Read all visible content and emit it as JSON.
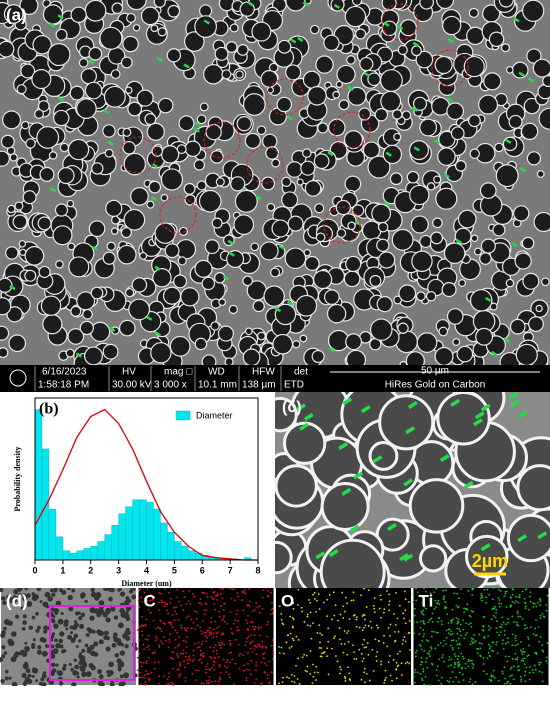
{
  "panel_a": {
    "label": "(a)",
    "info_fields": [
      {
        "top": "6/16/2023",
        "bottom": "1:58:18 PM"
      },
      {
        "top": "HV",
        "bottom": "30.00 kV"
      },
      {
        "top": "mag □",
        "bottom": "3 000 x"
      },
      {
        "top": "WD",
        "bottom": "10.1 mm"
      },
      {
        "top": "HFW",
        "bottom": "138 µm"
      },
      {
        "top": "det",
        "bottom": "ETD"
      }
    ],
    "scale_bar": "50 µm",
    "description": "HiRes Gold on Carbon"
  },
  "chart_data": {
    "type": "histogram",
    "label": "(b)",
    "xlabel": "Diameter (um)",
    "ylabel": "Probability density",
    "bins": [
      0,
      0.25,
      0.5,
      0.75,
      1,
      1.25,
      1.5,
      1.75,
      2,
      2.25,
      2.5,
      2.75,
      3,
      3.25,
      3.5,
      3.75,
      4,
      4.25,
      4.5,
      4.75,
      5,
      5.25,
      5.5,
      5.75,
      6,
      6.25,
      6.5,
      6.75,
      7,
      7.25,
      7.5,
      7.75,
      8
    ],
    "series": [
      {
        "name": "Diameter",
        "color": "#00e5ee",
        "values": [
          0.65,
          0.48,
          0.22,
          0.1,
          0.04,
          0.03,
          0.04,
          0.05,
          0.06,
          0.08,
          0.11,
          0.15,
          0.2,
          0.23,
          0.26,
          0.26,
          0.25,
          0.22,
          0.16,
          0.12,
          0.08,
          0.06,
          0.04,
          0.03,
          0.02,
          0.01,
          0.01,
          0.005,
          0.005,
          0,
          0.01,
          0
        ]
      }
    ],
    "fit": {
      "color": "#e00000",
      "x": [
        0,
        0.5,
        1,
        1.5,
        2,
        2.5,
        3,
        3.5,
        4,
        4.5,
        5,
        5.5,
        6,
        6.5,
        7,
        7.5,
        8
      ],
      "values": [
        0.15,
        0.26,
        0.39,
        0.53,
        0.62,
        0.65,
        0.59,
        0.48,
        0.34,
        0.21,
        0.12,
        0.06,
        0.02,
        0.01,
        0.005,
        0,
        0
      ]
    },
    "xlim": [
      0,
      8
    ],
    "xticks": [
      0,
      1,
      2,
      3,
      4,
      5,
      6,
      7,
      8
    ],
    "ylim": [
      0,
      0.7
    ],
    "legend": "top-right"
  },
  "panel_c": {
    "label": "(c)",
    "scale_bar": "2µm"
  },
  "panel_d": {
    "labels": [
      "(d)",
      "C",
      "O",
      "Ti"
    ]
  }
}
